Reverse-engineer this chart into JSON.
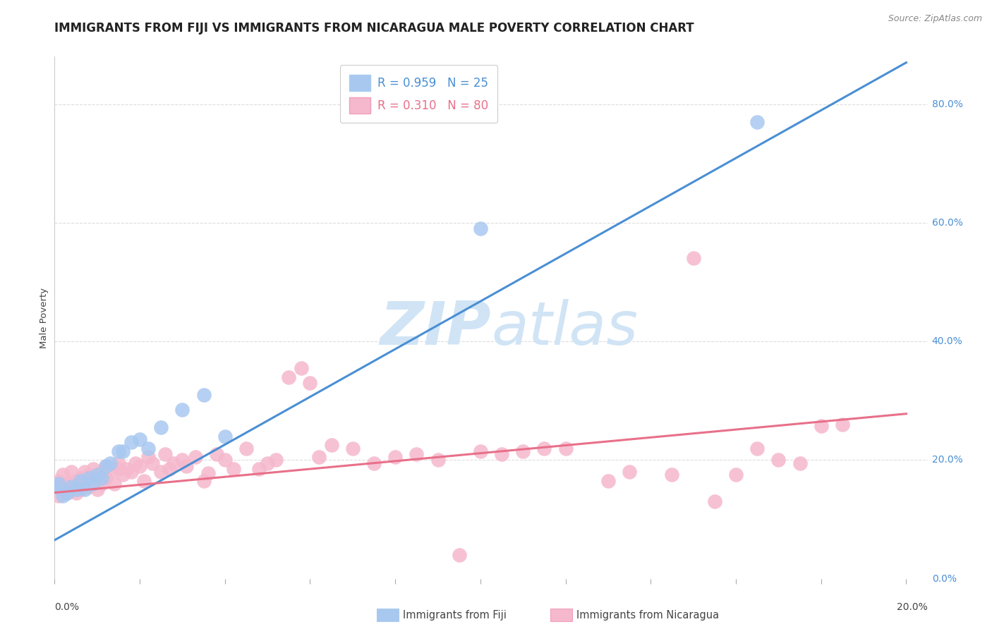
{
  "title": "IMMIGRANTS FROM FIJI VS IMMIGRANTS FROM NICARAGUA MALE POVERTY CORRELATION CHART",
  "source": "Source: ZipAtlas.com",
  "ylabel": "Male Poverty",
  "legend": {
    "fiji_R": "R = 0.959",
    "fiji_N": "N = 25",
    "nic_R": "R = 0.310",
    "nic_N": "N = 80"
  },
  "fiji_color": "#a8c8f0",
  "nicaragua_color": "#f5b8cc",
  "fiji_line_color": "#4a8fd4",
  "nicaragua_line_color": "#e8708a",
  "watermark_color": "#d0e4f5",
  "fiji_scatter_x": [
    0.0,
    0.001,
    0.002,
    0.003,
    0.004,
    0.005,
    0.006,
    0.007,
    0.008,
    0.009,
    0.01,
    0.011,
    0.012,
    0.013,
    0.015,
    0.016,
    0.018,
    0.02,
    0.022,
    0.025,
    0.03,
    0.035,
    0.04,
    0.1,
    0.165
  ],
  "fiji_scatter_y": [
    0.155,
    0.16,
    0.14,
    0.145,
    0.155,
    0.15,
    0.165,
    0.15,
    0.17,
    0.16,
    0.175,
    0.17,
    0.19,
    0.195,
    0.215,
    0.215,
    0.23,
    0.235,
    0.22,
    0.255,
    0.285,
    0.31,
    0.24,
    0.59,
    0.77
  ],
  "nic_scatter_x": [
    0.0,
    0.001,
    0.001,
    0.002,
    0.002,
    0.003,
    0.003,
    0.004,
    0.004,
    0.005,
    0.005,
    0.006,
    0.006,
    0.007,
    0.007,
    0.008,
    0.008,
    0.009,
    0.009,
    0.01,
    0.01,
    0.011,
    0.011,
    0.012,
    0.012,
    0.013,
    0.014,
    0.015,
    0.015,
    0.016,
    0.017,
    0.018,
    0.019,
    0.02,
    0.021,
    0.022,
    0.023,
    0.025,
    0.026,
    0.027,
    0.028,
    0.03,
    0.031,
    0.033,
    0.035,
    0.036,
    0.038,
    0.04,
    0.042,
    0.045,
    0.048,
    0.05,
    0.052,
    0.055,
    0.058,
    0.06,
    0.062,
    0.065,
    0.07,
    0.075,
    0.08,
    0.085,
    0.09,
    0.095,
    0.1,
    0.105,
    0.11,
    0.115,
    0.12,
    0.13,
    0.135,
    0.145,
    0.15,
    0.155,
    0.16,
    0.165,
    0.17,
    0.175,
    0.18,
    0.185
  ],
  "nic_scatter_y": [
    0.155,
    0.14,
    0.165,
    0.15,
    0.175,
    0.145,
    0.16,
    0.16,
    0.18,
    0.145,
    0.165,
    0.15,
    0.17,
    0.16,
    0.18,
    0.155,
    0.175,
    0.165,
    0.185,
    0.15,
    0.175,
    0.16,
    0.18,
    0.17,
    0.19,
    0.18,
    0.16,
    0.185,
    0.195,
    0.175,
    0.185,
    0.18,
    0.195,
    0.19,
    0.165,
    0.205,
    0.195,
    0.18,
    0.21,
    0.185,
    0.195,
    0.2,
    0.19,
    0.205,
    0.165,
    0.178,
    0.21,
    0.2,
    0.185,
    0.22,
    0.185,
    0.195,
    0.2,
    0.34,
    0.355,
    0.33,
    0.205,
    0.225,
    0.22,
    0.195,
    0.205,
    0.21,
    0.2,
    0.04,
    0.215,
    0.21,
    0.215,
    0.22,
    0.22,
    0.165,
    0.18,
    0.175,
    0.54,
    0.13,
    0.175,
    0.22,
    0.2,
    0.195,
    0.257,
    0.26
  ],
  "fiji_line_x": [
    0.0,
    0.2
  ],
  "fiji_line_y": [
    0.065,
    0.87
  ],
  "nic_line_x": [
    0.0,
    0.2
  ],
  "nic_line_y": [
    0.145,
    0.278
  ],
  "xmin": 0.0,
  "xmax": 0.205,
  "ymin": 0.0,
  "ymax": 0.88,
  "yticks": [
    0.0,
    0.2,
    0.4,
    0.6,
    0.8
  ],
  "ytick_labels": [
    "0.0%",
    "20.0%",
    "40.0%",
    "60.0%",
    "80.0%"
  ],
  "grid_color": "#dddddd",
  "title_fontsize": 12,
  "label_fontsize": 9.5,
  "legend_fontsize": 12,
  "tick_fontsize": 10
}
